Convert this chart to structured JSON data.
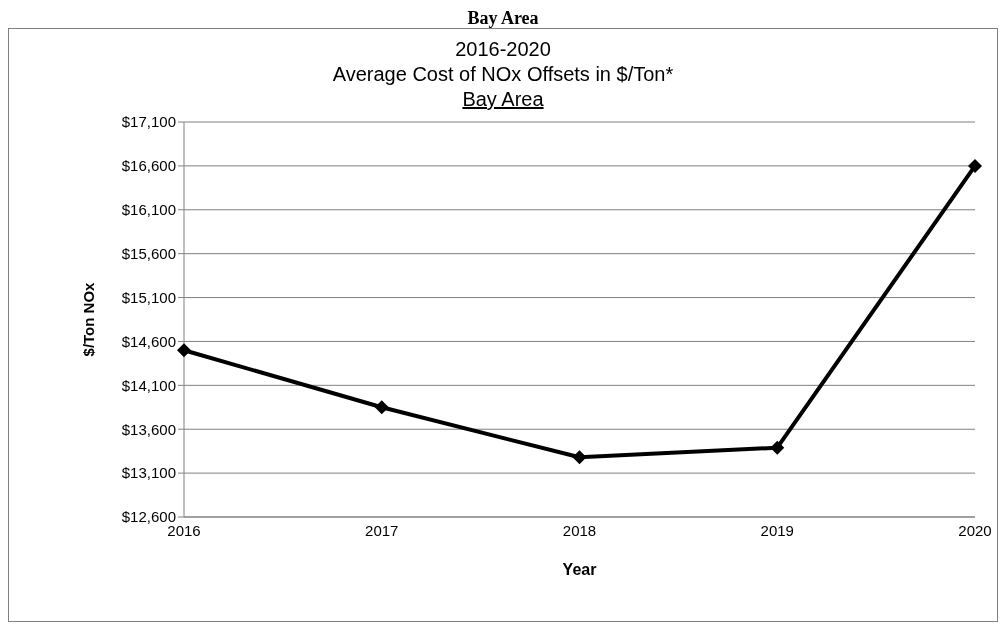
{
  "chart_data": {
    "type": "line",
    "annotations": [
      "Bay Area"
    ],
    "title": "2016-2020\nAverage Cost of NOx Offsets in $/Ton*",
    "subtitle": "Bay Area",
    "xlabel": "Year",
    "ylabel": "$/Ton NOx",
    "categories": [
      "2016",
      "2017",
      "2018",
      "2019",
      "2020"
    ],
    "series": [
      {
        "color": "#000000",
        "values": [
          14500,
          13850,
          13280,
          13390,
          16600
        ]
      }
    ],
    "ylim": [
      12600,
      17100
    ],
    "yticks": [
      {
        "value": 12600,
        "label": "$12,600"
      },
      {
        "value": 13100,
        "label": "$13,100"
      },
      {
        "value": 13600,
        "label": "$13,600"
      },
      {
        "value": 14100,
        "label": "$14,100"
      },
      {
        "value": 14600,
        "label": "$14,600"
      },
      {
        "value": 15100,
        "label": "$15,100"
      },
      {
        "value": 15600,
        "label": "$15,600"
      },
      {
        "value": 16100,
        "label": "$16,100"
      },
      {
        "value": 16600,
        "label": "$16,600"
      },
      {
        "value": 17100,
        "label": "$17,100"
      }
    ],
    "grid": "y",
    "legend": false,
    "marker": "diamond",
    "line_style": "solid"
  }
}
